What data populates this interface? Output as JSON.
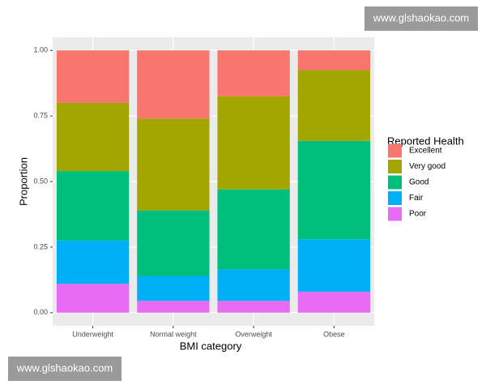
{
  "chart_data": {
    "type": "stacked_bar",
    "x_label": "BMI category",
    "y_label": "Proportion",
    "legend_title": "Reported Health",
    "categories": [
      "Underweight",
      "Normal weight",
      "Overweight",
      "Obese"
    ],
    "series": [
      {
        "name": "Excellent",
        "color": "#F8766D",
        "values": [
          0.2,
          0.26,
          0.175,
          0.075
        ]
      },
      {
        "name": "Very good",
        "color": "#A3A500",
        "values": [
          0.26,
          0.35,
          0.355,
          0.27
        ]
      },
      {
        "name": "Good",
        "color": "#00BF7D",
        "values": [
          0.265,
          0.25,
          0.305,
          0.375
        ]
      },
      {
        "name": "Fair",
        "color": "#00B0F6",
        "values": [
          0.165,
          0.095,
          0.12,
          0.2
        ]
      },
      {
        "name": "Poor",
        "color": "#E76BF3",
        "values": [
          0.11,
          0.045,
          0.045,
          0.08
        ]
      }
    ],
    "ylim": [
      -0.05,
      1.05
    ],
    "yticks": [
      {
        "value": 0,
        "label": "0.00"
      },
      {
        "value": 0.25,
        "label": "0.25"
      },
      {
        "value": 0.5,
        "label": "0.50"
      },
      {
        "value": 0.75,
        "label": "0.75"
      },
      {
        "value": 1,
        "label": "1.00"
      }
    ],
    "grid": true,
    "legend_position": "right"
  },
  "watermarks": [
    "www.glshaokao.com",
    "www.glshaokao.com"
  ]
}
